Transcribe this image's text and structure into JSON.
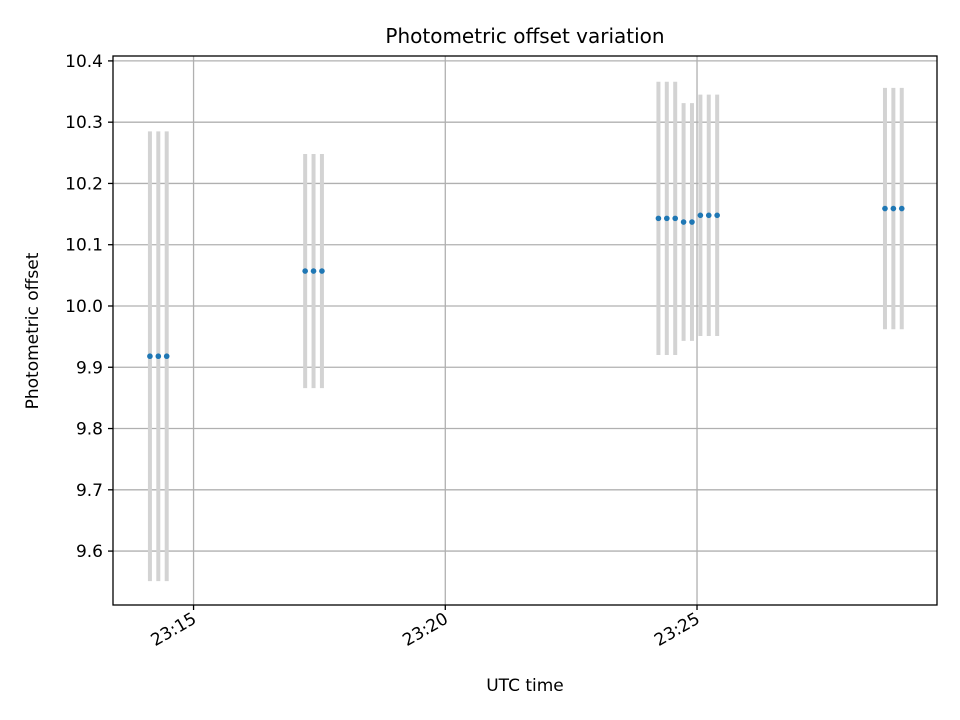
{
  "chart_data": {
    "type": "scatter",
    "title": "Photometric offset variation",
    "xlabel": "UTC time",
    "ylabel": "Photometric offset",
    "x_tick_labels": [
      "23:15",
      "23:20",
      "23:25"
    ],
    "x_ticks": [
      "23:15",
      "23:20",
      "23:25"
    ],
    "y_ticks": [
      9.6,
      9.7,
      9.8,
      9.9,
      10.0,
      10.1,
      10.2,
      10.3,
      10.4
    ],
    "y_tick_labels": [
      "9.6",
      "9.7",
      "9.8",
      "9.9",
      "10.0",
      "10.1",
      "10.2",
      "10.3",
      "10.4"
    ],
    "xlim": [
      "23:13:24",
      "23:29:46"
    ],
    "ylim": [
      9.512,
      10.408
    ],
    "grid": true,
    "colors": {
      "point": "#1f77b4",
      "errorbar": "#d3d3d3",
      "grid": "#b0b0b0"
    },
    "series": [
      {
        "points": [
          {
            "x": "23:14:08",
            "y": 9.918,
            "err": 0.367
          },
          {
            "x": "23:14:18",
            "y": 9.918,
            "err": 0.367
          },
          {
            "x": "23:14:28",
            "y": 9.918,
            "err": 0.367
          },
          {
            "x": "23:17:13",
            "y": 10.057,
            "err": 0.191
          },
          {
            "x": "23:17:23",
            "y": 10.057,
            "err": 0.191
          },
          {
            "x": "23:17:33",
            "y": 10.057,
            "err": 0.191
          },
          {
            "x": "23:24:14",
            "y": 10.143,
            "err": 0.223
          },
          {
            "x": "23:24:24",
            "y": 10.143,
            "err": 0.223
          },
          {
            "x": "23:24:34",
            "y": 10.143,
            "err": 0.223
          },
          {
            "x": "23:24:44",
            "y": 10.137,
            "err": 0.194
          },
          {
            "x": "23:24:54",
            "y": 10.137,
            "err": 0.194
          },
          {
            "x": "23:25:04",
            "y": 10.148,
            "err": 0.197
          },
          {
            "x": "23:25:14",
            "y": 10.148,
            "err": 0.197
          },
          {
            "x": "23:25:24",
            "y": 10.148,
            "err": 0.197
          },
          {
            "x": "23:28:44",
            "y": 10.159,
            "err": 0.197
          },
          {
            "x": "23:28:54",
            "y": 10.159,
            "err": 0.197
          },
          {
            "x": "23:29:04",
            "y": 10.159,
            "err": 0.197
          }
        ]
      }
    ]
  }
}
